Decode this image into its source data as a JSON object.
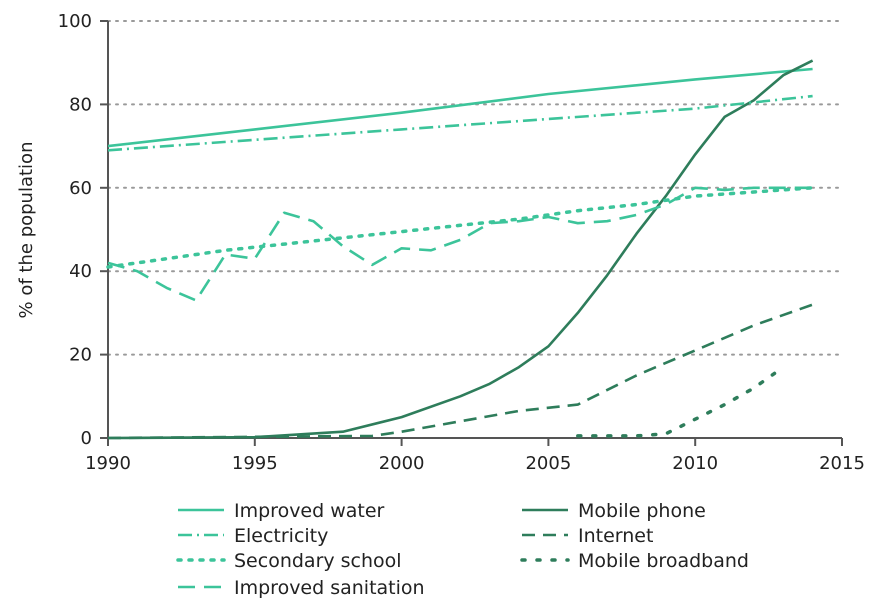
{
  "chart_data": {
    "type": "line",
    "title": "",
    "xlabel": "",
    "ylabel": "% of the population",
    "xlim": [
      1990,
      2015
    ],
    "ylim": [
      0,
      100
    ],
    "x_ticks": [
      1990,
      1995,
      2000,
      2005,
      2010,
      2015
    ],
    "y_ticks": [
      0,
      20,
      40,
      60,
      80,
      100
    ],
    "grid": "horizontal dotted",
    "legend_position": "bottom",
    "series": [
      {
        "name": "Improved water",
        "color": "#3cc49a",
        "style": "solid",
        "points": [
          [
            1990,
            70
          ],
          [
            1995,
            74
          ],
          [
            2000,
            78
          ],
          [
            2005,
            82.5
          ],
          [
            2010,
            86
          ],
          [
            2014,
            88.5
          ]
        ]
      },
      {
        "name": "Mobile phone",
        "color": "#2e7d5b",
        "style": "solid",
        "points": [
          [
            1990,
            0
          ],
          [
            1995,
            0.2
          ],
          [
            1998,
            1.5
          ],
          [
            2000,
            5
          ],
          [
            2002,
            10
          ],
          [
            2003,
            13
          ],
          [
            2004,
            17
          ],
          [
            2005,
            22
          ],
          [
            2006,
            30
          ],
          [
            2007,
            39
          ],
          [
            2008,
            49
          ],
          [
            2009,
            58
          ],
          [
            2010,
            68
          ],
          [
            2011,
            77
          ],
          [
            2012,
            81
          ],
          [
            2013,
            87
          ],
          [
            2014,
            90.5
          ]
        ]
      },
      {
        "name": "Electricity",
        "color": "#3cc49a",
        "style": "dashdot",
        "points": [
          [
            1990,
            69
          ],
          [
            1995,
            71.5
          ],
          [
            2000,
            74
          ],
          [
            2005,
            76.5
          ],
          [
            2010,
            79
          ],
          [
            2014,
            82
          ]
        ]
      },
      {
        "name": "Internet",
        "color": "#2e7d5b",
        "style": "dashed",
        "points": [
          [
            1990,
            0
          ],
          [
            1999,
            0.5
          ],
          [
            2000,
            1.5
          ],
          [
            2002,
            4
          ],
          [
            2004,
            6.5
          ],
          [
            2006,
            8
          ],
          [
            2008,
            15
          ],
          [
            2010,
            21
          ],
          [
            2012,
            27
          ],
          [
            2014,
            32
          ]
        ]
      },
      {
        "name": "Secondary school",
        "color": "#3cc49a",
        "style": "dotted",
        "points": [
          [
            1990,
            41
          ],
          [
            1992,
            43
          ],
          [
            1994,
            45
          ],
          [
            1996,
            46.5
          ],
          [
            1998,
            48
          ],
          [
            2000,
            49.5
          ],
          [
            2002,
            51
          ],
          [
            2004,
            52.5
          ],
          [
            2006,
            54.5
          ],
          [
            2008,
            56
          ],
          [
            2010,
            58
          ],
          [
            2012,
            59
          ],
          [
            2014,
            60
          ]
        ]
      },
      {
        "name": "Mobile broadband",
        "color": "#2e7d5b",
        "style": "sparse-dotted",
        "points": [
          [
            2006,
            0.5
          ],
          [
            2007,
            0.5
          ],
          [
            2008,
            0.5
          ],
          [
            2009,
            1
          ],
          [
            2010,
            4.5
          ],
          [
            2011,
            8
          ],
          [
            2012,
            12
          ],
          [
            2012.7,
            15.5
          ]
        ]
      },
      {
        "name": "Improved sanitation",
        "color": "#3cc49a",
        "style": "long-dashed",
        "points": [
          [
            1990,
            42
          ],
          [
            1991,
            40
          ],
          [
            1992,
            36
          ],
          [
            1993,
            33
          ],
          [
            1994,
            44
          ],
          [
            1995,
            43
          ],
          [
            1996,
            54
          ],
          [
            1997,
            52
          ],
          [
            1998,
            46
          ],
          [
            1999,
            41.5
          ],
          [
            2000,
            45.5
          ],
          [
            2001,
            45
          ],
          [
            2002,
            47.5
          ],
          [
            2003,
            51.5
          ],
          [
            2004,
            52
          ],
          [
            2005,
            53
          ],
          [
            2006,
            51.5
          ],
          [
            2007,
            52
          ],
          [
            2008,
            53.5
          ],
          [
            2009,
            56
          ],
          [
            2010,
            60
          ],
          [
            2011,
            59.5
          ],
          [
            2012,
            60
          ],
          [
            2013,
            60
          ],
          [
            2014,
            60
          ]
        ]
      }
    ]
  }
}
